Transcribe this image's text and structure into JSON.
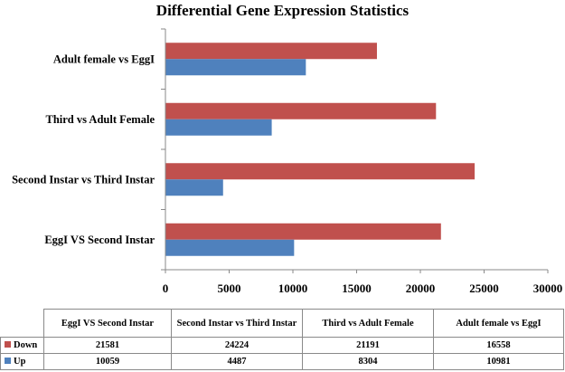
{
  "colors": {
    "down": "#c0504d",
    "up": "#4f81bd",
    "axis": "#8a8a8a"
  },
  "chart_data": {
    "type": "bar",
    "orientation": "horizontal",
    "title": "Differential Gene Expression Statistics",
    "categories": [
      "EggI VS Second Instar",
      "Second Instar vs Third Instar",
      "Third vs Adult Female",
      "Adult female vs EggI"
    ],
    "series": [
      {
        "name": "Down",
        "values": [
          21581,
          24224,
          21191,
          16558
        ]
      },
      {
        "name": "Up",
        "values": [
          10059,
          4487,
          8304,
          10981
        ]
      }
    ],
    "xlim": [
      0,
      30000
    ],
    "x_ticks": [
      0,
      5000,
      10000,
      15000,
      20000,
      25000,
      30000
    ],
    "grid": false,
    "legend": "data-table-below"
  },
  "table": {
    "columns": [
      "EggI VS Second Instar",
      "Second Instar vs Third Instar",
      "Third vs Adult Female",
      "Adult female vs EggI"
    ],
    "rows": [
      {
        "label": "Down",
        "values": [
          "21581",
          "24224",
          "21191",
          "16558"
        ]
      },
      {
        "label": "Up",
        "values": [
          "10059",
          "4487",
          "8304",
          "10981"
        ]
      }
    ]
  }
}
